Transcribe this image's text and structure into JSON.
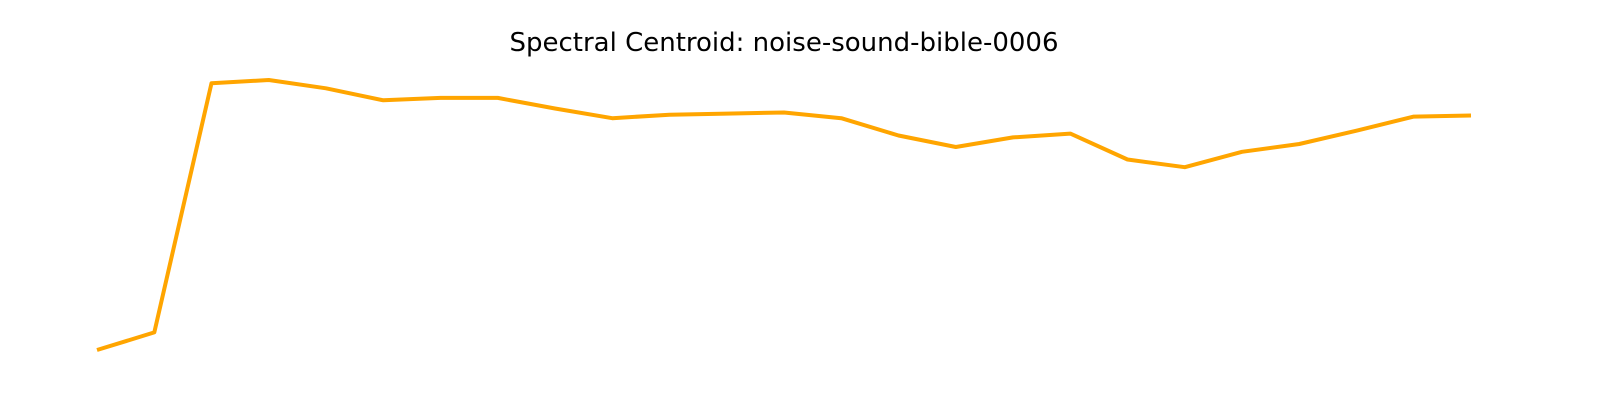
{
  "chart_data": {
    "type": "line",
    "title": "Spectral Centroid: noise-sound-bible-0006",
    "xlabel": "",
    "ylabel": "",
    "axes_visible": false,
    "grid": false,
    "legend": "none",
    "series": [
      {
        "color": "#FFA500",
        "values": [
          0.0,
          0.066,
          1.0,
          1.012,
          0.981,
          0.936,
          0.945,
          0.945,
          0.905,
          0.869,
          0.882,
          0.886,
          0.89,
          0.869,
          0.804,
          0.761,
          0.797,
          0.811,
          0.714,
          0.685,
          0.743,
          0.772,
          0.822,
          0.875,
          0.879
        ]
      }
    ],
    "x": [
      0,
      1,
      2,
      3,
      4,
      5,
      6,
      7,
      8,
      9,
      10,
      11,
      12,
      13,
      14,
      15,
      16,
      17,
      18,
      19,
      20,
      21,
      22,
      23,
      24
    ]
  }
}
